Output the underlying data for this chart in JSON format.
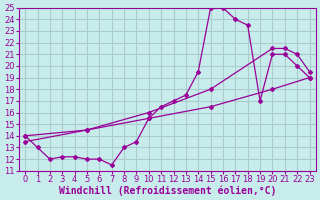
{
  "xlabel": "Windchill (Refroidissement éolien,°C)",
  "background_color": "#c8ecec",
  "line_color": "#990099",
  "grid_color": "#aacccc",
  "xlim": [
    -0.5,
    23.5
  ],
  "ylim": [
    11,
    25
  ],
  "xticks": [
    0,
    1,
    2,
    3,
    4,
    5,
    6,
    7,
    8,
    9,
    10,
    11,
    12,
    13,
    14,
    15,
    16,
    17,
    18,
    19,
    20,
    21,
    22,
    23
  ],
  "yticks": [
    11,
    12,
    13,
    14,
    15,
    16,
    17,
    18,
    19,
    20,
    21,
    22,
    23,
    24,
    25
  ],
  "line1_x": [
    0,
    1,
    2,
    3,
    4,
    5,
    6,
    7,
    8,
    9,
    10,
    11,
    12,
    13,
    14,
    15,
    16,
    17,
    18,
    19,
    20,
    21,
    22,
    23
  ],
  "line1_y": [
    14,
    13,
    12,
    12.2,
    12.2,
    12,
    12,
    11.5,
    13,
    13.5,
    15.5,
    16.5,
    17,
    17.5,
    19.5,
    25,
    25,
    24,
    23.5,
    17,
    21,
    21,
    20,
    19
  ],
  "line2_x": [
    0,
    5,
    10,
    15,
    20,
    23
  ],
  "line2_y": [
    14,
    14.5,
    15.5,
    16.5,
    18,
    19
  ],
  "line3_x": [
    0,
    5,
    10,
    15,
    20,
    21,
    22,
    23
  ],
  "line3_y": [
    13.5,
    14.5,
    16,
    18,
    21.5,
    21.5,
    21,
    19.5
  ],
  "tick_fontsize": 6,
  "label_fontsize": 7
}
